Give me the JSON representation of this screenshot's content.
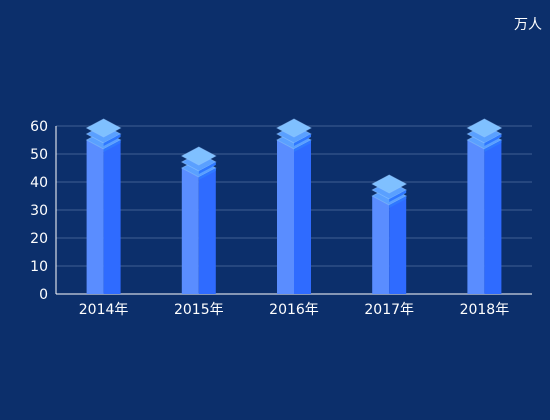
{
  "chart_data": {
    "type": "bar",
    "unit": "万人",
    "categories": [
      "2014年",
      "2015年",
      "2016年",
      "2017年",
      "2018年"
    ],
    "values": [
      55,
      45,
      55,
      35,
      55
    ],
    "ylim": [
      0,
      60
    ],
    "yticks": [
      0,
      10,
      20,
      30,
      40,
      50,
      60
    ],
    "grid": true,
    "colors": {
      "background": "#0c2f6b",
      "axis": "#ffffff",
      "grid": "#3f5f93",
      "bar_left": "#5a8dff",
      "bar_right": "#2f6bff",
      "top_left": "#5aa0ff",
      "top_right": "#2f78ff",
      "cap": "#7fc0ff"
    }
  }
}
